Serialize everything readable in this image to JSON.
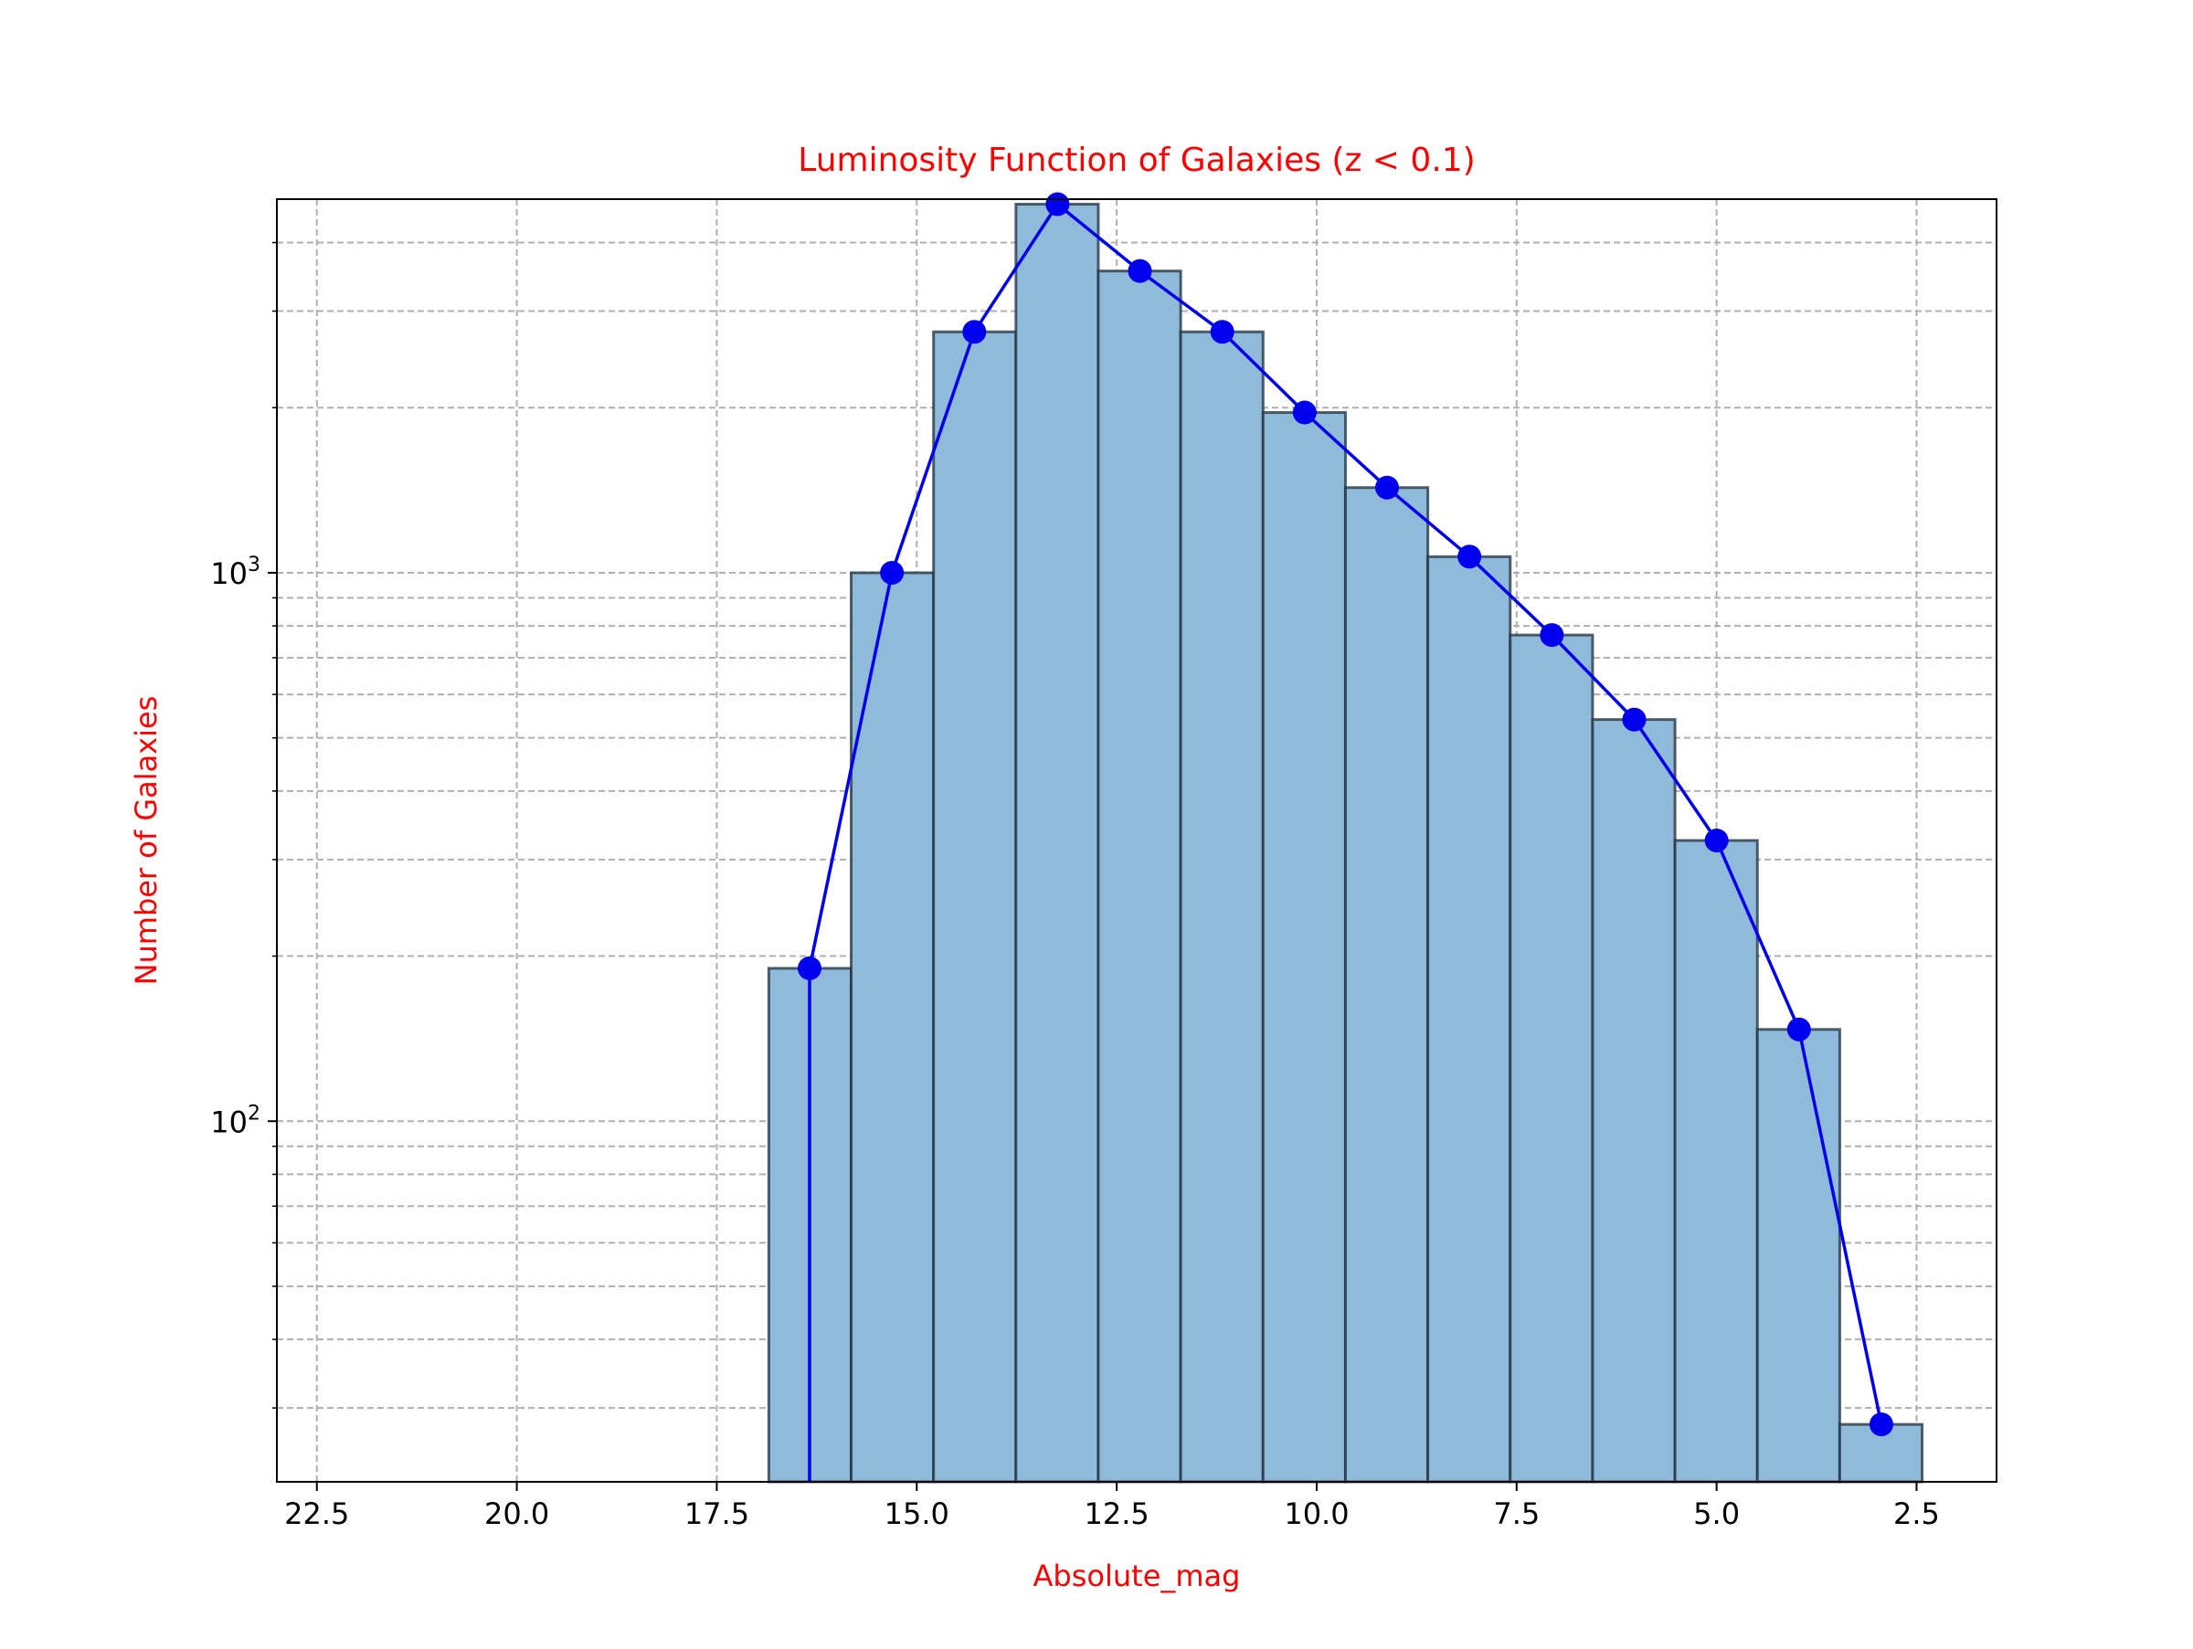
{
  "chart_data": {
    "type": "bar",
    "title": "Luminosity Function of Galaxies (z < 0.1)",
    "xlabel": "Absolute_mag",
    "ylabel": "Number of Galaxies",
    "x_axis_inverted": true,
    "xlim": [
      23.0,
      1.5
    ],
    "ylim": [
      22,
      4800
    ],
    "yscale": "log",
    "grid": true,
    "grid_style": "dashed",
    "xticks": [
      22.5,
      20.0,
      17.5,
      15.0,
      12.5,
      10.0,
      7.5,
      5.0,
      2.5
    ],
    "xtick_labels": [
      "22.5",
      "20.0",
      "17.5",
      "15.0",
      "12.5",
      "10.0",
      "7.5",
      "5.0",
      "2.5"
    ],
    "yticks_major": [
      100,
      1000
    ],
    "ytick_labels": [
      {
        "base": "10",
        "exp": "2"
      },
      {
        "base": "10",
        "exp": "3"
      }
    ],
    "yticks_minor": [
      30,
      40,
      50,
      60,
      70,
      80,
      90,
      200,
      300,
      400,
      500,
      600,
      700,
      800,
      900,
      2000,
      3000,
      4000
    ],
    "bin_edges": [
      16.85,
      15.82,
      14.79,
      13.76,
      12.73,
      11.7,
      10.67,
      9.64,
      8.61,
      7.58,
      6.55,
      5.52,
      4.49,
      3.46,
      2.43
    ],
    "counts": [
      190,
      1000,
      2750,
      4700,
      3550,
      2750,
      1960,
      1430,
      1070,
      770,
      540,
      325,
      147,
      28
    ],
    "series": [
      {
        "name": "",
        "style": "line-marker",
        "x": [
          16.34,
          15.31,
          14.28,
          13.24,
          12.21,
          11.18,
          10.15,
          9.12,
          8.09,
          7.06,
          6.03,
          5.0,
          3.97,
          2.94
        ],
        "y": [
          190,
          1000,
          2750,
          4700,
          3550,
          2750,
          1960,
          1430,
          1070,
          770,
          540,
          325,
          147,
          28
        ]
      }
    ],
    "colors": {
      "bar_fill": "#8fbad9",
      "bar_edge": "#1f2f3d",
      "line": "#0000ee",
      "title": "#ff0000",
      "axis_labels": "#ff0000",
      "grid": "#b0b0b0"
    }
  }
}
